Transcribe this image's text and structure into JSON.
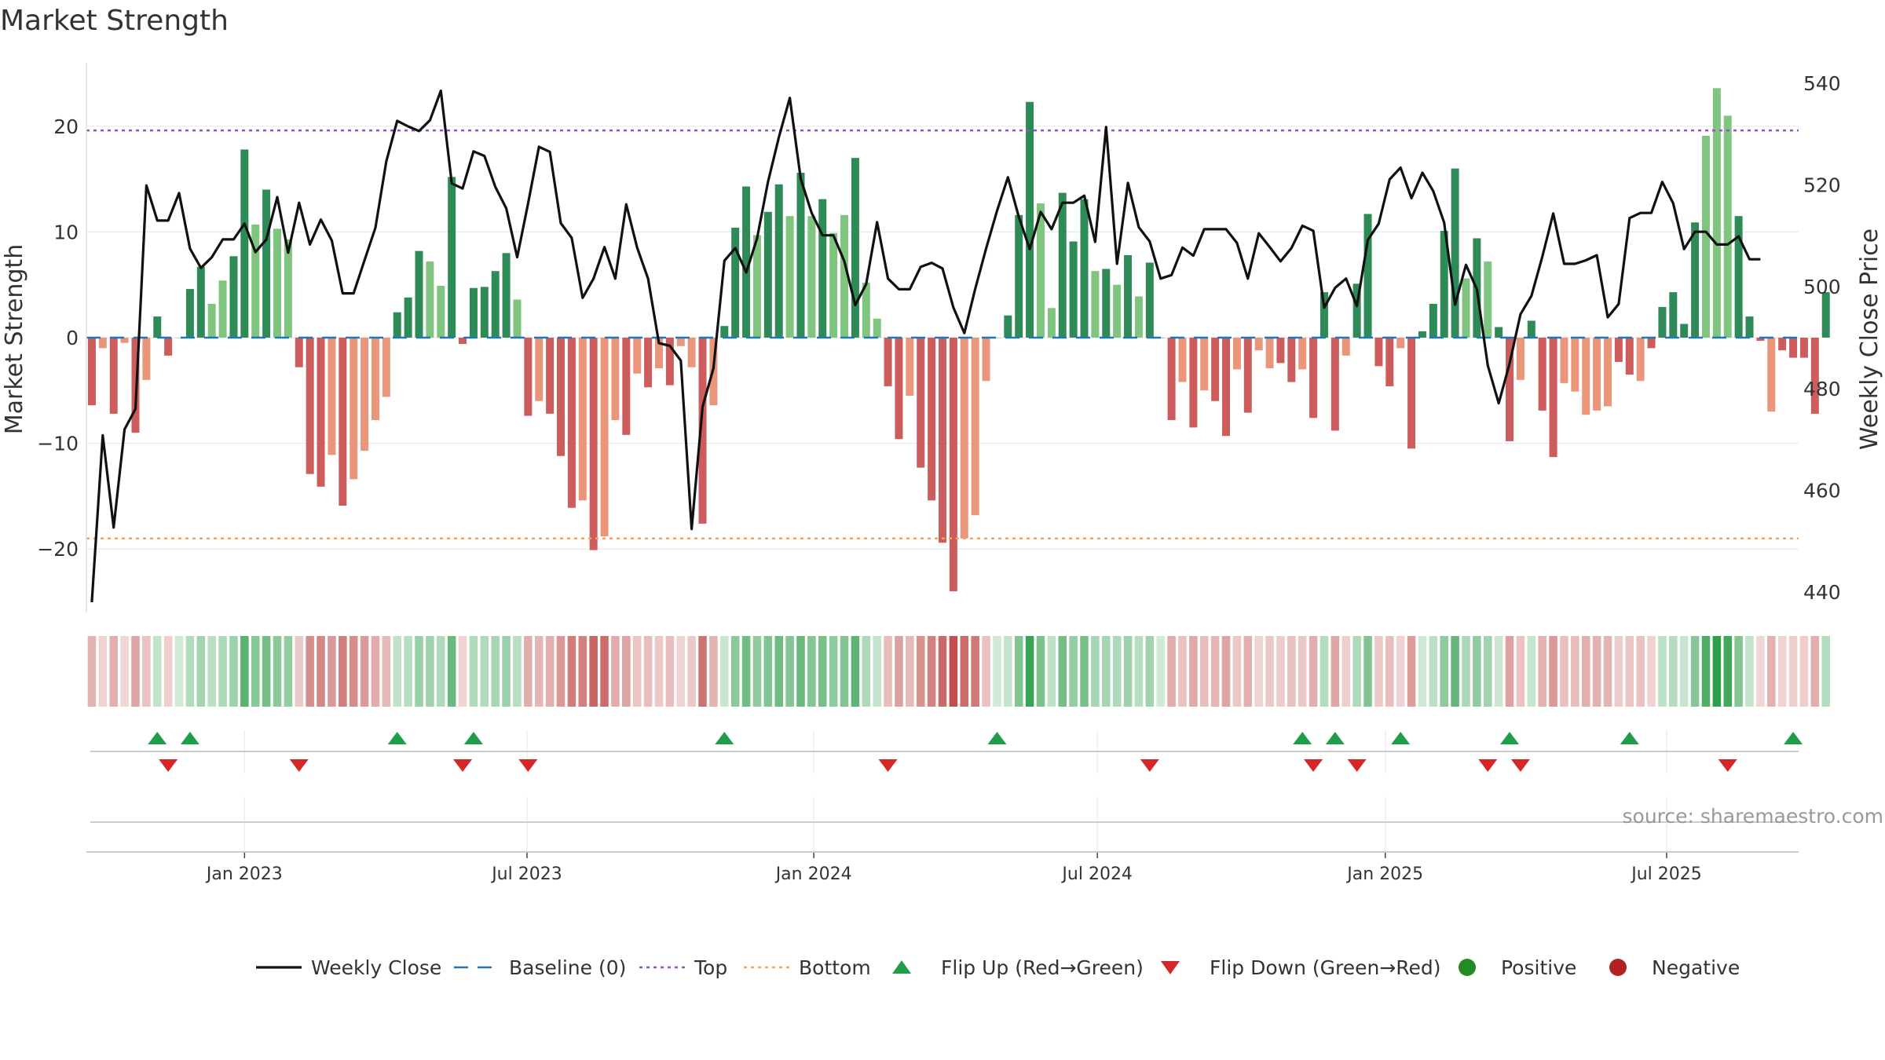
{
  "chart_data": {
    "type": "bar+line",
    "title": "Market Strength",
    "ylabel_left": "Market Strength",
    "ylabel_right": "Weekly Close Price",
    "ylim_left": [
      -26,
      26
    ],
    "ylim_right": [
      436,
      544
    ],
    "left_ticks": [
      {
        "value": 20,
        "label": "20"
      },
      {
        "value": 10,
        "label": "10"
      },
      {
        "value": 0,
        "label": "0"
      },
      {
        "value": -10,
        "label": "−10"
      },
      {
        "value": -20,
        "label": "−20"
      }
    ],
    "right_ticks": [
      {
        "value": 540,
        "label": "540"
      },
      {
        "value": 520,
        "label": "520"
      },
      {
        "value": 500,
        "label": "500"
      },
      {
        "value": 480,
        "label": "480"
      },
      {
        "value": 460,
        "label": "460"
      },
      {
        "value": 440,
        "label": "440"
      }
    ],
    "top_line": 19.6,
    "bottom_line": -19,
    "week_count": 157,
    "x_ticks": [
      {
        "week": 14.5,
        "label": "Jan 2023"
      },
      {
        "week": 40.4,
        "label": "Jul 2023"
      },
      {
        "week": 66.7,
        "label": "Jan 2024"
      },
      {
        "week": 92.7,
        "label": "Jul 2024"
      },
      {
        "week": 119.1,
        "label": "Jan 2025"
      },
      {
        "week": 144.9,
        "label": "Jul 2025"
      }
    ],
    "strength": [
      -6.4,
      -1.0,
      -7.2,
      -0.5,
      -9.0,
      -4.0,
      2.0,
      -1.7,
      0.0,
      4.6,
      6.7,
      3.2,
      5.4,
      7.7,
      17.8,
      10.7,
      14.0,
      10.3,
      9.3,
      -2.8,
      -12.9,
      -14.1,
      -11.1,
      -15.9,
      -13.4,
      -10.7,
      -7.8,
      -5.6,
      2.4,
      3.8,
      8.2,
      7.2,
      4.9,
      15.2,
      -0.6,
      4.7,
      4.8,
      6.3,
      8.0,
      3.6,
      -7.4,
      -6.0,
      -7.2,
      -11.2,
      -16.1,
      -15.4,
      -20.1,
      -18.8,
      -7.8,
      -9.2,
      -3.4,
      -4.7,
      -2.9,
      -4.5,
      -0.8,
      -2.8,
      -17.6,
      -6.4,
      1.1,
      10.4,
      14.3,
      9.7,
      11.9,
      14.5,
      11.5,
      15.6,
      11.5,
      13.1,
      9.9,
      11.6,
      17.0,
      5.2,
      1.8,
      -4.6,
      -9.6,
      -5.5,
      -12.3,
      -15.4,
      -19.4,
      -24.0,
      -19.0,
      -16.8,
      -4.1,
      0.0,
      2.1,
      11.6,
      22.3,
      12.7,
      2.8,
      13.7,
      9.1,
      13.1,
      6.3,
      6.5,
      5.0,
      7.8,
      3.9,
      7.1,
      0.0,
      -7.8,
      -4.2,
      -8.5,
      -5.0,
      -6.0,
      -9.3,
      -3.0,
      -7.1,
      -1.2,
      -2.9,
      -2.4,
      -4.2,
      -3.0,
      -7.6,
      4.3,
      -8.8,
      -1.7,
      5.1,
      11.7,
      -2.7,
      -4.6,
      -1.0,
      -10.5,
      0.6,
      3.2,
      10.1,
      16.0,
      5.6,
      9.4,
      7.2,
      1.0,
      -9.8,
      -4.0,
      1.6,
      -6.9,
      -11.3,
      -4.3,
      -5.1,
      -7.3,
      -6.9,
      -6.5,
      -2.3,
      -3.5,
      -4.1,
      -1.0,
      2.9,
      4.3,
      1.3,
      10.9,
      19.1,
      23.6,
      21.0,
      11.5,
      2.0,
      -0.3,
      -7.0,
      -1.2,
      -1.9,
      -1.9,
      -7.2,
      4.3
    ],
    "shade": [
      1,
      0,
      1,
      0,
      1,
      0,
      1,
      1,
      0,
      1,
      1,
      0,
      0,
      1,
      1,
      0,
      1,
      0,
      0,
      1,
      1,
      1,
      0,
      1,
      0,
      0,
      0,
      0,
      1,
      1,
      1,
      0,
      0,
      1,
      1,
      1,
      1,
      1,
      1,
      0,
      1,
      0,
      1,
      1,
      1,
      0,
      1,
      0,
      0,
      1,
      0,
      1,
      0,
      1,
      0,
      0,
      1,
      0,
      1,
      1,
      1,
      0,
      1,
      1,
      0,
      1,
      0,
      1,
      0,
      0,
      1,
      0,
      0,
      1,
      1,
      0,
      1,
      1,
      1,
      1,
      0,
      0,
      0,
      0,
      1,
      1,
      1,
      0,
      0,
      1,
      1,
      1,
      0,
      1,
      0,
      1,
      0,
      1,
      1,
      1,
      0,
      1,
      0,
      1,
      1,
      0,
      1,
      0,
      0,
      1,
      1,
      0,
      1,
      1,
      1,
      0,
      1,
      1,
      1,
      1,
      0,
      1,
      1,
      1,
      1,
      1,
      0,
      1,
      0,
      1,
      1,
      0,
      1,
      1,
      1,
      0,
      0,
      0,
      0,
      0,
      1,
      1,
      0,
      1,
      1,
      1,
      1,
      1,
      0,
      0,
      0,
      1,
      1,
      1,
      0,
      1,
      1,
      1
    ],
    "weekly_close": [
      438.0,
      470.8,
      452.7,
      472.0,
      476.0,
      519.9,
      513.0,
      513.0,
      518.4,
      507.5,
      503.7,
      505.8,
      509.3,
      509.3,
      512.4,
      506.8,
      509.3,
      517.6,
      506.7,
      516.5,
      508.3,
      513.2,
      509.1,
      498.7,
      498.7,
      505.2,
      511.6,
      524.6,
      532.6,
      531.5,
      530.6,
      532.7,
      538.5,
      520.3,
      519.3,
      526.6,
      525.7,
      519.6,
      515.4,
      505.8,
      516.4,
      527.5,
      526.5,
      512.5,
      509.6,
      497.8,
      501.6,
      507.8,
      501.6,
      516.2,
      507.7,
      501.6,
      488.9,
      488.4,
      485.5,
      452.4,
      476.4,
      484.0,
      505.1,
      507.6,
      502.8,
      509.5,
      520.6,
      529.4,
      537.1,
      521.2,
      514.5,
      510.1,
      510.1,
      505.0,
      496.4,
      500.5,
      512.7,
      501.6,
      499.5,
      499.5,
      503.9,
      504.7,
      503.6,
      495.9,
      490.9,
      499.6,
      507.5,
      514.9,
      521.5,
      513.7,
      507.4,
      514.7,
      511.3,
      516.5,
      516.5,
      517.9,
      508.8,
      531.4,
      504.5,
      520.4,
      511.7,
      508.9,
      501.6,
      502.3,
      507.7,
      506.1,
      511.3,
      511.3,
      511.3,
      508.6,
      501.6,
      510.5,
      507.8,
      505.0,
      507.6,
      512.0,
      511.0,
      495.9,
      499.8,
      501.6,
      496.2,
      509.2,
      512.4,
      521.1,
      523.4,
      517.4,
      522.4,
      518.8,
      512.6,
      496.5,
      504.3,
      499.5,
      484.5,
      477.1,
      484.9,
      494.6,
      498.2,
      505.9,
      514.4,
      504.5,
      504.5,
      505.2,
      506.2,
      494.0,
      496.6,
      513.5,
      514.5,
      514.5,
      520.6,
      516.4,
      507.4,
      510.8,
      510.8,
      508.3,
      508.3,
      509.9,
      505.4,
      505.4
    ],
    "flip_up_weeks": [
      6,
      9,
      28,
      35,
      58,
      83,
      111,
      114,
      120,
      130,
      141,
      156
    ],
    "flip_down_weeks": [
      7,
      19,
      34,
      40,
      73,
      97,
      112,
      116,
      128,
      131,
      150
    ],
    "legend": [
      {
        "key": "close",
        "label": "Weekly Close"
      },
      {
        "key": "baseline",
        "label": "Baseline (0)"
      },
      {
        "key": "top",
        "label": "Top"
      },
      {
        "key": "bottom",
        "label": "Bottom"
      },
      {
        "key": "flip_up",
        "label": "Flip Up (Red→Green)"
      },
      {
        "key": "flip_down",
        "label": "Flip Down (Green→Red)"
      },
      {
        "key": "positive",
        "label": "Positive"
      },
      {
        "key": "negative",
        "label": "Negative"
      }
    ],
    "source": "source: sharemaestro.com"
  },
  "colors": {
    "bar_pos_dark": "#2e8b57",
    "bar_pos_light": "#7fc47f",
    "bar_neg_dark": "#cd5c5c",
    "bar_neg_light": "#e9967a",
    "heat_pos": "#2e9e4a",
    "heat_neg": "#c0504d",
    "price_line": "#111111",
    "baseline": "#1f77b4",
    "top_line": "#9b4dca",
    "bottom_line": "#f4a460",
    "flip_up": "#1f9e4a",
    "flip_down": "#d62728",
    "positive": "#228b22",
    "negative": "#b22222",
    "grid": "#e6e6e6"
  }
}
